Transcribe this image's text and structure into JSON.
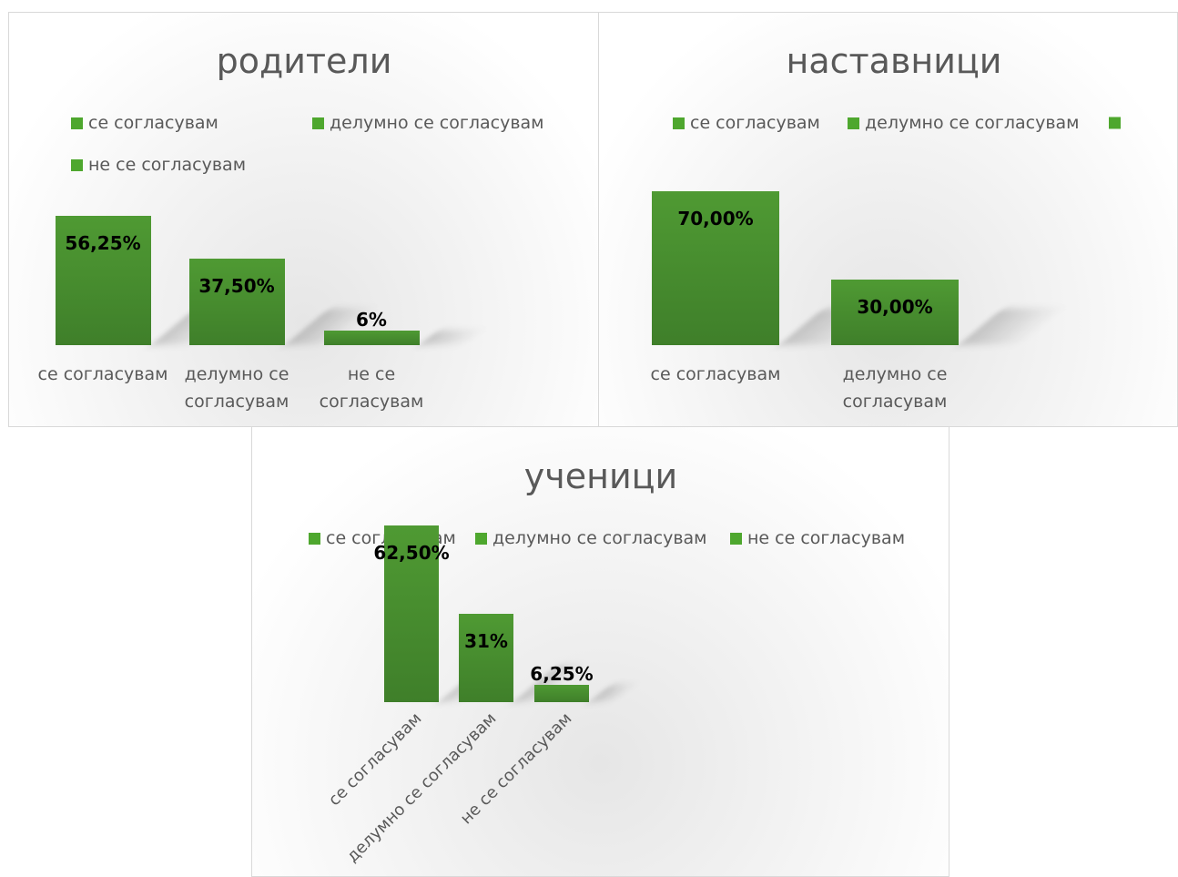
{
  "chart_data": [
    {
      "type": "bar",
      "title": "родители",
      "categories": [
        "се согласувам",
        "делумно се согласувам",
        "не се согласувам"
      ],
      "values": [
        56.25,
        37.5,
        6.25
      ],
      "value_labels": [
        "56,25%",
        "37,50%",
        "6%"
      ],
      "color": "#4f9a33"
    },
    {
      "type": "bar",
      "title": "наставници",
      "categories": [
        "се согласувам",
        "делумно се согласувам",
        null
      ],
      "values": [
        70,
        30,
        null
      ],
      "value_labels": [
        "70,00%",
        "30,00%",
        null
      ],
      "color": "#4f9a33"
    },
    {
      "type": "bar",
      "title": "ученици",
      "categories": [
        "се согласувам",
        "делумно се согласувам",
        "не се согласувам"
      ],
      "values": [
        62.5,
        31.25,
        6.25
      ],
      "value_labels": [
        "62,50%",
        "31%",
        "6,25%"
      ],
      "color": "#4f9a33"
    }
  ]
}
